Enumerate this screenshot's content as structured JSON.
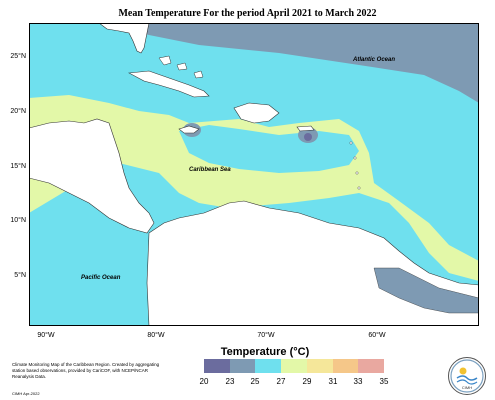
{
  "title": "Mean Temperature For the period April 2021 to March 2022",
  "map_labels": {
    "atlantic": "Atlantic Ocean",
    "caribbean": "Caribbean Sea",
    "pacific": "Pacific Ocean"
  },
  "lat_ticks": [
    "25°N",
    "20°N",
    "15°N",
    "10°N",
    "5°N"
  ],
  "lon_ticks": [
    "90°W",
    "80°W",
    "70°W",
    "60°W"
  ],
  "legend": {
    "title": "Temperature (°C)",
    "labels": [
      "20",
      "23",
      "25",
      "27",
      "29",
      "31",
      "33",
      "35"
    ],
    "colors": [
      "#6b6c9e",
      "#7e9ab3",
      "#6fe0ee",
      "#e3f8a8",
      "#f5e79a",
      "#f5c789",
      "#e9a8a0"
    ]
  },
  "credit": "Climate Monitoring Map of the Caribbean Region. Created by aggregating station based observations, provided by CariCOF, with NCEP/NCAR Reanalysis Data.",
  "credit_small": "CIMH Apr-2022",
  "logo_text": "CIMH",
  "colors": {
    "land": "#ffffff",
    "ocean_cool": "#7e9ab3",
    "ocean_mid": "#6fe0ee",
    "ocean_warm": "#e3f8a8"
  }
}
